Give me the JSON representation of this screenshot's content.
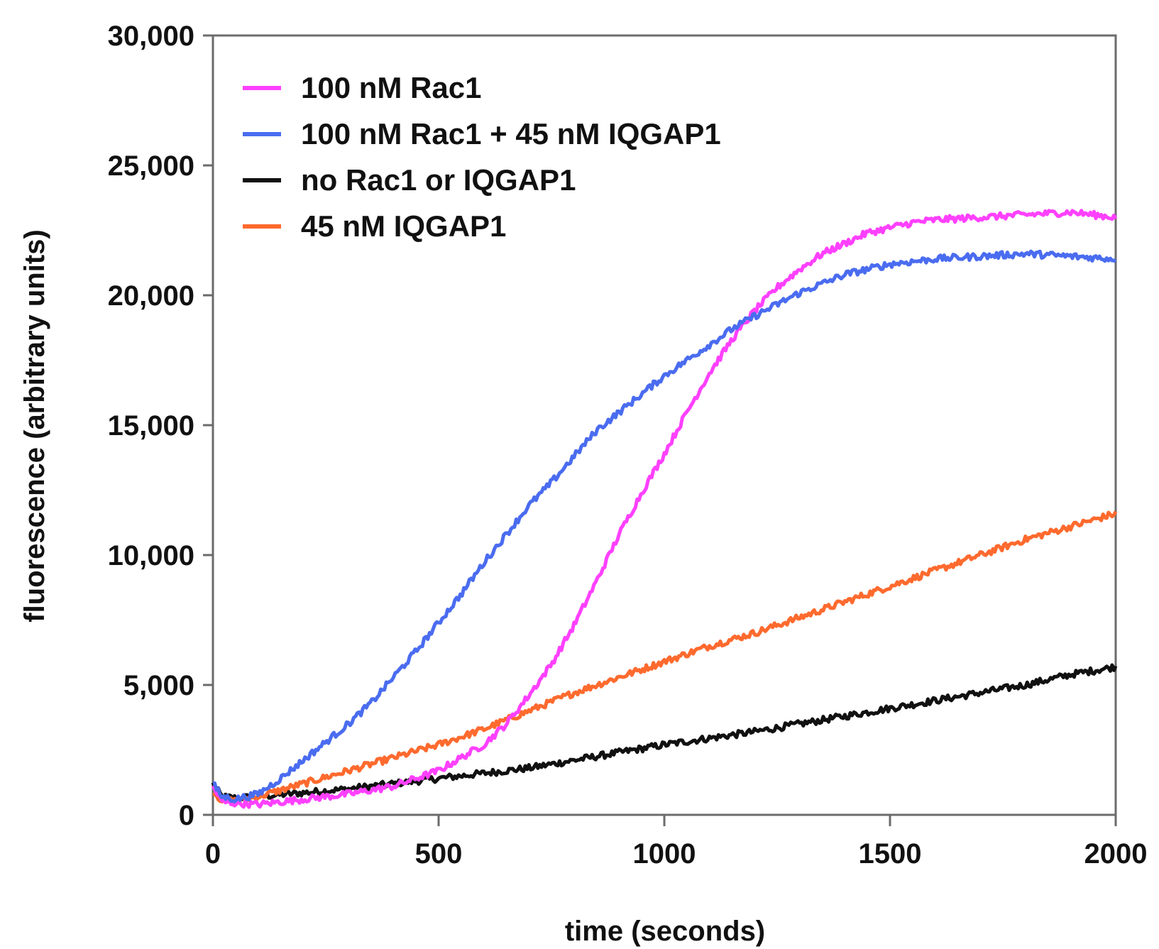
{
  "chart_data": {
    "type": "line",
    "title": "",
    "xlabel": "time (seconds)",
    "ylabel": "fluorescence (arbitrary units)",
    "xlim": [
      0,
      2000
    ],
    "ylim": [
      0,
      30000
    ],
    "x_ticks": [
      0,
      500,
      1000,
      1500,
      2000
    ],
    "x_tick_labels": [
      "0",
      "500",
      "1000",
      "1500",
      "2000"
    ],
    "y_ticks": [
      0,
      5000,
      10000,
      15000,
      20000,
      25000,
      30000
    ],
    "y_tick_labels": [
      "0",
      "5,000",
      "10,000",
      "15,000",
      "20,000",
      "25,000",
      "30,000"
    ],
    "grid": false,
    "legend_position": "top-left",
    "series": [
      {
        "name": "100 nM Rac1",
        "color": "#ff40ff",
        "x": [
          0,
          20,
          50,
          100,
          200,
          300,
          400,
          500,
          600,
          650,
          700,
          750,
          800,
          850,
          900,
          950,
          1000,
          1050,
          1100,
          1150,
          1200,
          1250,
          1300,
          1350,
          1400,
          1450,
          1500,
          1550,
          1600,
          1700,
          1800,
          1900,
          1950,
          2000
        ],
        "y": [
          1100,
          500,
          450,
          400,
          600,
          800,
          1100,
          1700,
          2700,
          3500,
          4600,
          5800,
          7300,
          9000,
          10800,
          12400,
          13900,
          15500,
          17000,
          18300,
          19400,
          20300,
          21000,
          21600,
          22000,
          22400,
          22600,
          22800,
          22900,
          23000,
          23100,
          23200,
          23100,
          23000
        ]
      },
      {
        "name": "100 nM Rac1 + 45 nM IQGAP1",
        "color": "#4a6cf0",
        "x": [
          0,
          20,
          50,
          100,
          150,
          200,
          250,
          300,
          350,
          400,
          450,
          500,
          550,
          600,
          650,
          700,
          750,
          800,
          850,
          900,
          950,
          1000,
          1050,
          1100,
          1150,
          1200,
          1300,
          1400,
          1500,
          1600,
          1700,
          1800,
          1900,
          2000
        ],
        "y": [
          1200,
          700,
          600,
          800,
          1400,
          2100,
          2800,
          3500,
          4300,
          5300,
          6300,
          7400,
          8500,
          9700,
          10800,
          11900,
          12800,
          13800,
          14800,
          15500,
          16200,
          16900,
          17500,
          18100,
          18700,
          19200,
          20100,
          20800,
          21200,
          21400,
          21500,
          21600,
          21500,
          21400
        ]
      },
      {
        "name": "no Rac1 or IQGAP1",
        "color": "#111111",
        "x": [
          0,
          20,
          50,
          100,
          200,
          300,
          400,
          500,
          600,
          700,
          800,
          900,
          1000,
          1100,
          1200,
          1300,
          1400,
          1500,
          1600,
          1700,
          1800,
          1900,
          2000
        ],
        "y": [
          1200,
          700,
          650,
          700,
          850,
          1000,
          1200,
          1400,
          1600,
          1800,
          2100,
          2400,
          2700,
          2950,
          3200,
          3500,
          3800,
          4100,
          4400,
          4700,
          5000,
          5400,
          5700
        ]
      },
      {
        "name": "45 nM IQGAP1",
        "color": "#ff6a2e",
        "x": [
          0,
          20,
          50,
          100,
          200,
          300,
          400,
          500,
          600,
          700,
          800,
          900,
          1000,
          1100,
          1200,
          1300,
          1400,
          1500,
          1600,
          1700,
          1800,
          1900,
          2000
        ],
        "y": [
          900,
          550,
          550,
          700,
          1200,
          1700,
          2200,
          2700,
          3300,
          4000,
          4700,
          5300,
          5900,
          6500,
          7000,
          7600,
          8200,
          8800,
          9400,
          10000,
          10600,
          11100,
          11600
        ]
      }
    ]
  }
}
